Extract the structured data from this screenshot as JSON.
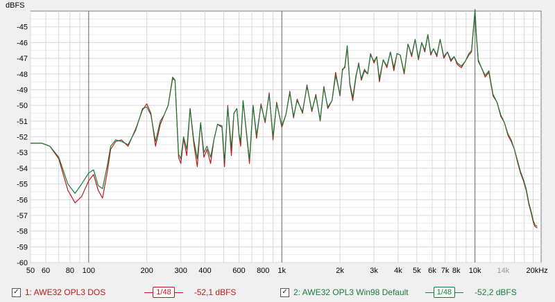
{
  "chart_data": {
    "type": "line",
    "ylabel": "dBFS",
    "xscale": "log",
    "xunit": "Hz",
    "xlim": [
      50,
      22000
    ],
    "ylim": [
      -60,
      -44
    ],
    "y_ticks": [
      -45,
      -46,
      -47,
      -48,
      -49,
      -50,
      -51,
      -52,
      -53,
      -54,
      -55,
      -56,
      -57,
      -58,
      -59,
      -60
    ],
    "x_ticks": [
      {
        "v": 50,
        "label": "50",
        "grey": false
      },
      {
        "v": 60,
        "label": "60",
        "grey": false
      },
      {
        "v": 80,
        "label": "80",
        "grey": false
      },
      {
        "v": 100,
        "label": "100",
        "grey": false
      },
      {
        "v": 200,
        "label": "200",
        "grey": false
      },
      {
        "v": 300,
        "label": "300",
        "grey": false
      },
      {
        "v": 400,
        "label": "400",
        "grey": false
      },
      {
        "v": 600,
        "label": "600",
        "grey": false
      },
      {
        "v": 800,
        "label": "800",
        "grey": false
      },
      {
        "v": 1000,
        "label": "1k",
        "grey": false
      },
      {
        "v": 2000,
        "label": "2k",
        "grey": false
      },
      {
        "v": 3000,
        "label": "3k",
        "grey": false
      },
      {
        "v": 4000,
        "label": "4k",
        "grey": false
      },
      {
        "v": 5000,
        "label": "5k",
        "grey": false
      },
      {
        "v": 6000,
        "label": "6k",
        "grey": false
      },
      {
        "v": 7000,
        "label": "7k",
        "grey": false
      },
      {
        "v": 8000,
        "label": "8k",
        "grey": false
      },
      {
        "v": 10000,
        "label": "10k",
        "grey": false
      },
      {
        "v": 14000,
        "label": "14k",
        "grey": true
      },
      {
        "v": 20000,
        "label": "20kHz",
        "grey": false
      }
    ],
    "minor_x": [
      50,
      60,
      70,
      80,
      90,
      100,
      200,
      300,
      400,
      500,
      600,
      700,
      800,
      900,
      1000,
      2000,
      3000,
      4000,
      5000,
      6000,
      7000,
      8000,
      9000,
      10000,
      12000,
      14000,
      16000,
      18000,
      20000
    ],
    "major_x": [
      100,
      1000,
      10000
    ],
    "grid": true,
    "series": [
      {
        "name": "1: AWE32 OPL3 DOS",
        "color": "#c01818",
        "points": [
          [
            50,
            -52.4
          ],
          [
            57,
            -52.4
          ],
          [
            63,
            -52.6
          ],
          [
            70,
            -53.4
          ],
          [
            78,
            -55.4
          ],
          [
            85,
            -56.2
          ],
          [
            92,
            -55.8
          ],
          [
            100,
            -54.8
          ],
          [
            106,
            -54.4
          ],
          [
            112,
            -55.4
          ],
          [
            118,
            -55.9
          ],
          [
            125,
            -54.2
          ],
          [
            130,
            -52.8
          ],
          [
            138,
            -52.3
          ],
          [
            148,
            -52.2
          ],
          [
            160,
            -52.6
          ],
          [
            175,
            -51.5
          ],
          [
            190,
            -50.3
          ],
          [
            200,
            -49.9
          ],
          [
            210,
            -50.5
          ],
          [
            222,
            -52.6
          ],
          [
            235,
            -51.2
          ],
          [
            246,
            -50.6
          ],
          [
            258,
            -50.0
          ],
          [
            272,
            -48.3
          ],
          [
            280,
            -48.4
          ],
          [
            292,
            -53.3
          ],
          [
            300,
            -53.7
          ],
          [
            310,
            -52.1
          ],
          [
            322,
            -53.2
          ],
          [
            335,
            -50.2
          ],
          [
            350,
            -52.4
          ],
          [
            365,
            -53.9
          ],
          [
            380,
            -51.1
          ],
          [
            395,
            -53.3
          ],
          [
            410,
            -52.8
          ],
          [
            428,
            -53.7
          ],
          [
            445,
            -52.2
          ],
          [
            465,
            -51.2
          ],
          [
            490,
            -51.4
          ],
          [
            505,
            -53.9
          ],
          [
            525,
            -50.0
          ],
          [
            548,
            -53.2
          ],
          [
            565,
            -50.5
          ],
          [
            585,
            -50.2
          ],
          [
            600,
            -51.9
          ],
          [
            612,
            -52.6
          ],
          [
            630,
            -49.7
          ],
          [
            650,
            -51.3
          ],
          [
            680,
            -53.7
          ],
          [
            710,
            -50.0
          ],
          [
            740,
            -52.1
          ],
          [
            780,
            -49.9
          ],
          [
            820,
            -51.1
          ],
          [
            860,
            -49.2
          ],
          [
            900,
            -52.2
          ],
          [
            940,
            -49.8
          ],
          [
            1000,
            -51.4
          ],
          [
            1050,
            -50.6
          ],
          [
            1100,
            -49.1
          ],
          [
            1150,
            -50.8
          ],
          [
            1200,
            -49.6
          ],
          [
            1280,
            -50.5
          ],
          [
            1350,
            -48.7
          ],
          [
            1430,
            -50.4
          ],
          [
            1500,
            -49.3
          ],
          [
            1580,
            -51.0
          ],
          [
            1650,
            -48.8
          ],
          [
            1730,
            -50.2
          ],
          [
            1820,
            -49.7
          ],
          [
            1900,
            -47.9
          ],
          [
            2000,
            -49.4
          ],
          [
            2060,
            -47.7
          ],
          [
            2120,
            -47.6
          ],
          [
            2180,
            -46.3
          ],
          [
            2250,
            -48.7
          ],
          [
            2330,
            -49.7
          ],
          [
            2420,
            -48.2
          ],
          [
            2500,
            -47.3
          ],
          [
            2580,
            -48.4
          ],
          [
            2680,
            -47.8
          ],
          [
            2780,
            -48.0
          ],
          [
            2880,
            -46.7
          ],
          [
            3000,
            -47.3
          ],
          [
            3100,
            -46.9
          ],
          [
            3200,
            -48.5
          ],
          [
            3350,
            -47.1
          ],
          [
            3500,
            -47.6
          ],
          [
            3650,
            -46.6
          ],
          [
            3800,
            -47.8
          ],
          [
            3950,
            -46.7
          ],
          [
            4100,
            -46.8
          ],
          [
            4300,
            -48.0
          ],
          [
            4500,
            -46.1
          ],
          [
            4700,
            -46.9
          ],
          [
            4900,
            -45.8
          ],
          [
            5100,
            -47.1
          ],
          [
            5300,
            -46.0
          ],
          [
            5500,
            -46.6
          ],
          [
            5700,
            -45.5
          ],
          [
            5900,
            -46.8
          ],
          [
            6100,
            -46.4
          ],
          [
            6350,
            -46.9
          ],
          [
            6600,
            -45.8
          ],
          [
            6900,
            -47.0
          ],
          [
            7200,
            -46.6
          ],
          [
            7500,
            -47.2
          ],
          [
            7800,
            -46.9
          ],
          [
            8100,
            -47.4
          ],
          [
            8500,
            -47.6
          ],
          [
            8900,
            -47.2
          ],
          [
            9300,
            -46.8
          ],
          [
            9600,
            -46.6
          ],
          [
            9850,
            -45.0
          ],
          [
            10000,
            -44.1
          ],
          [
            10150,
            -45.5
          ],
          [
            10400,
            -47.2
          ],
          [
            10800,
            -47.6
          ],
          [
            11300,
            -48.2
          ],
          [
            11800,
            -47.9
          ],
          [
            12400,
            -49.4
          ],
          [
            13000,
            -49.8
          ],
          [
            13600,
            -50.7
          ],
          [
            14200,
            -51.1
          ],
          [
            14800,
            -51.9
          ],
          [
            15400,
            -52.3
          ],
          [
            16000,
            -52.8
          ],
          [
            16600,
            -53.6
          ],
          [
            17200,
            -54.3
          ],
          [
            17800,
            -54.8
          ],
          [
            18400,
            -55.4
          ],
          [
            19000,
            -56.3
          ],
          [
            19600,
            -56.9
          ],
          [
            20000,
            -57.4
          ],
          [
            20400,
            -57.7
          ],
          [
            21000,
            -57.8
          ]
        ]
      },
      {
        "name": "2: AWE32 OPL3 Win98 Default",
        "color": "#1a7a3a",
        "points": [
          [
            50,
            -52.4
          ],
          [
            57,
            -52.4
          ],
          [
            63,
            -52.6
          ],
          [
            70,
            -53.3
          ],
          [
            78,
            -55.0
          ],
          [
            85,
            -55.6
          ],
          [
            92,
            -55.0
          ],
          [
            100,
            -54.3
          ],
          [
            106,
            -54.1
          ],
          [
            112,
            -55.1
          ],
          [
            118,
            -55.3
          ],
          [
            125,
            -53.8
          ],
          [
            130,
            -52.6
          ],
          [
            138,
            -52.2
          ],
          [
            148,
            -52.3
          ],
          [
            160,
            -52.5
          ],
          [
            175,
            -51.6
          ],
          [
            190,
            -50.2
          ],
          [
            200,
            -50.1
          ],
          [
            210,
            -50.6
          ],
          [
            222,
            -52.3
          ],
          [
            235,
            -51.0
          ],
          [
            246,
            -50.6
          ],
          [
            258,
            -50.0
          ],
          [
            272,
            -48.2
          ],
          [
            280,
            -48.4
          ],
          [
            292,
            -53.1
          ],
          [
            300,
            -53.4
          ],
          [
            310,
            -52.0
          ],
          [
            322,
            -52.8
          ],
          [
            335,
            -50.2
          ],
          [
            350,
            -52.2
          ],
          [
            365,
            -53.4
          ],
          [
            380,
            -51.1
          ],
          [
            395,
            -53.0
          ],
          [
            410,
            -52.6
          ],
          [
            428,
            -53.3
          ],
          [
            445,
            -52.2
          ],
          [
            465,
            -51.2
          ],
          [
            490,
            -51.3
          ],
          [
            505,
            -53.6
          ],
          [
            525,
            -50.1
          ],
          [
            548,
            -52.7
          ],
          [
            565,
            -50.5
          ],
          [
            585,
            -50.2
          ],
          [
            600,
            -51.8
          ],
          [
            612,
            -52.3
          ],
          [
            630,
            -49.7
          ],
          [
            650,
            -51.2
          ],
          [
            680,
            -53.5
          ],
          [
            710,
            -50.0
          ],
          [
            740,
            -51.9
          ],
          [
            780,
            -50.0
          ],
          [
            820,
            -51.0
          ],
          [
            860,
            -49.3
          ],
          [
            900,
            -52.0
          ],
          [
            940,
            -49.9
          ],
          [
            1000,
            -51.3
          ],
          [
            1050,
            -50.6
          ],
          [
            1100,
            -49.2
          ],
          [
            1150,
            -50.7
          ],
          [
            1200,
            -49.7
          ],
          [
            1280,
            -50.4
          ],
          [
            1350,
            -48.8
          ],
          [
            1430,
            -50.3
          ],
          [
            1500,
            -49.4
          ],
          [
            1580,
            -50.9
          ],
          [
            1650,
            -48.9
          ],
          [
            1730,
            -50.1
          ],
          [
            1820,
            -49.7
          ],
          [
            1900,
            -48.1
          ],
          [
            2000,
            -49.3
          ],
          [
            2060,
            -47.8
          ],
          [
            2120,
            -47.5
          ],
          [
            2180,
            -46.2
          ],
          [
            2250,
            -48.6
          ],
          [
            2330,
            -49.5
          ],
          [
            2420,
            -48.1
          ],
          [
            2500,
            -47.4
          ],
          [
            2580,
            -48.3
          ],
          [
            2680,
            -47.7
          ],
          [
            2780,
            -48.0
          ],
          [
            2880,
            -46.8
          ],
          [
            3000,
            -47.2
          ],
          [
            3100,
            -46.9
          ],
          [
            3200,
            -48.3
          ],
          [
            3350,
            -47.1
          ],
          [
            3500,
            -47.5
          ],
          [
            3650,
            -46.6
          ],
          [
            3800,
            -47.6
          ],
          [
            3950,
            -46.7
          ],
          [
            4100,
            -46.8
          ],
          [
            4300,
            -47.9
          ],
          [
            4500,
            -46.1
          ],
          [
            4700,
            -46.8
          ],
          [
            4900,
            -45.8
          ],
          [
            5100,
            -47.0
          ],
          [
            5300,
            -46.0
          ],
          [
            5500,
            -46.5
          ],
          [
            5700,
            -45.5
          ],
          [
            5900,
            -46.7
          ],
          [
            6100,
            -46.4
          ],
          [
            6350,
            -46.8
          ],
          [
            6600,
            -45.8
          ],
          [
            6900,
            -46.9
          ],
          [
            7200,
            -46.6
          ],
          [
            7500,
            -47.1
          ],
          [
            7800,
            -46.9
          ],
          [
            8100,
            -47.3
          ],
          [
            8500,
            -47.5
          ],
          [
            8900,
            -47.2
          ],
          [
            9300,
            -46.7
          ],
          [
            9600,
            -46.5
          ],
          [
            9850,
            -44.9
          ],
          [
            10000,
            -43.9
          ],
          [
            10150,
            -45.4
          ],
          [
            10400,
            -47.1
          ],
          [
            10800,
            -47.6
          ],
          [
            11300,
            -48.1
          ],
          [
            11800,
            -47.8
          ],
          [
            12400,
            -49.3
          ],
          [
            13000,
            -49.8
          ],
          [
            13600,
            -50.6
          ],
          [
            14200,
            -51.1
          ],
          [
            14800,
            -51.8
          ],
          [
            15400,
            -52.2
          ],
          [
            16000,
            -52.8
          ],
          [
            16600,
            -53.5
          ],
          [
            17200,
            -54.2
          ],
          [
            17800,
            -54.7
          ],
          [
            18400,
            -55.3
          ],
          [
            19000,
            -56.2
          ],
          [
            19600,
            -56.8
          ],
          [
            20000,
            -57.3
          ],
          [
            20400,
            -57.6
          ],
          [
            21000,
            -57.7
          ]
        ]
      }
    ]
  },
  "legend": {
    "items": [
      {
        "checked": "✓",
        "label": "1: AWE32 OPL3 DOS",
        "smoothing": "1/48",
        "level": "-52,1 dBFS"
      },
      {
        "checked": "✓",
        "label": "2: AWE32 OPL3 Win98 Default",
        "smoothing": "1/48",
        "level": "-52,2 dBFS"
      }
    ]
  }
}
